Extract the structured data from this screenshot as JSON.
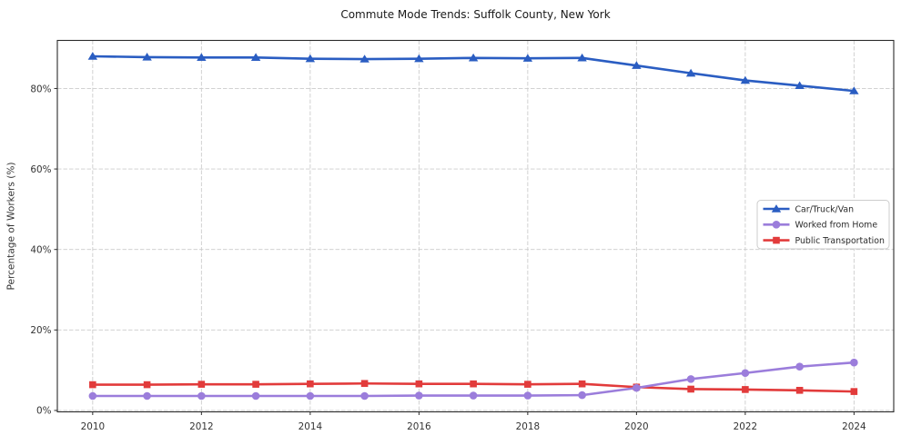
{
  "figure": {
    "background": "#ffffff"
  },
  "chart_data": {
    "type": "line",
    "title": "Commute Mode Trends: Suffolk County, New York",
    "xlabel": "",
    "ylabel": "Percentage of Workers (%)",
    "x": [
      2010,
      2011,
      2012,
      2013,
      2014,
      2015,
      2016,
      2017,
      2018,
      2019,
      2020,
      2021,
      2022,
      2023,
      2024
    ],
    "series": [
      {
        "name": "Car/Truck/Van",
        "slug": "car-truck-van",
        "color": "#2a5dc2",
        "marker": "triangle-up",
        "values": [
          88.0,
          87.8,
          87.7,
          87.7,
          87.4,
          87.3,
          87.4,
          87.6,
          87.5,
          87.6,
          85.7,
          83.8,
          82.0,
          80.7,
          79.4
        ]
      },
      {
        "name": "Worked from Home",
        "slug": "worked-from-home",
        "color": "#9b7ddb",
        "marker": "circle",
        "values": [
          3.6,
          3.6,
          3.6,
          3.6,
          3.6,
          3.6,
          3.7,
          3.7,
          3.7,
          3.8,
          5.6,
          7.8,
          9.3,
          10.9,
          11.9
        ]
      },
      {
        "name": "Public Transportation",
        "slug": "public-transportation",
        "color": "#e23b3b",
        "marker": "square",
        "values": [
          6.4,
          6.4,
          6.5,
          6.5,
          6.6,
          6.7,
          6.6,
          6.6,
          6.5,
          6.6,
          5.8,
          5.3,
          5.2,
          5.0,
          4.7
        ]
      }
    ],
    "draw_order": [
      0,
      2,
      1
    ],
    "xticks": [
      2010,
      2012,
      2014,
      2016,
      2018,
      2020,
      2022,
      2024
    ],
    "yticks": [
      0,
      20,
      40,
      60,
      80
    ],
    "ytick_suffix": "%",
    "xlim": [
      2009.35,
      2024.73
    ],
    "ylim": [
      -0.35,
      91.95
    ],
    "grid": true,
    "legend": {
      "position": "center-right",
      "labels": [
        "Car/Truck/Van",
        "Worked from Home",
        "Public Transportation"
      ]
    }
  },
  "colors": {
    "grid": "#cccccc",
    "spine": "#2b2b2b",
    "tick": "#2b2b2b",
    "text": "#333333",
    "legend_border": "#cccccc",
    "legend_background": "#ffffff"
  }
}
